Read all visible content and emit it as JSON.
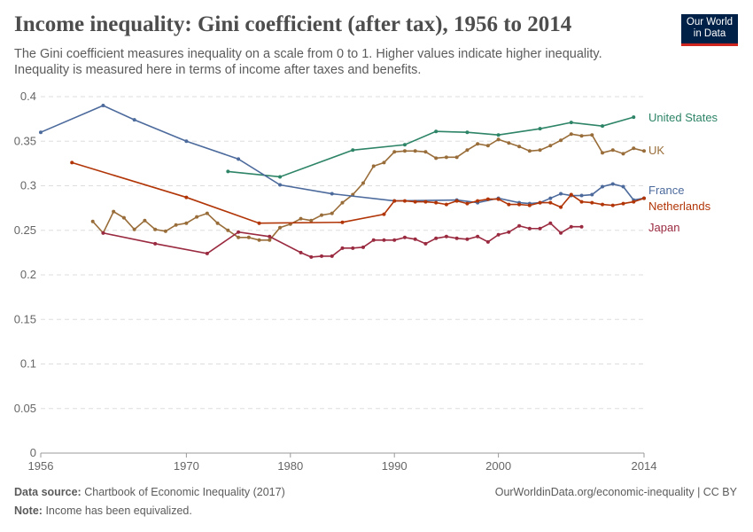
{
  "title": "Income inequality: Gini coefficient (after tax), 1956 to 2014",
  "subtitle": "The Gini coefficient measures inequality on a scale from 0 to 1. Higher values indicate higher inequality. Inequality is measured here in terms of income after taxes and benefits.",
  "logo": {
    "line1": "Our World",
    "line2": "in Data"
  },
  "footer": {
    "source_label": "Data source:",
    "source": "Chartbook of Economic Inequality (2017)",
    "url": "OurWorldinData.org/economic-inequality | CC BY",
    "note_label": "Note:",
    "note": "Income has been equivalized."
  },
  "chart_data": {
    "type": "line",
    "title": "Income inequality: Gini coefficient (after tax), 1956 to 2014",
    "xlim": [
      1956,
      2014
    ],
    "ylim": [
      0,
      0.4
    ],
    "xticks": [
      "1956",
      "1970",
      "1980",
      "1990",
      "2000",
      "2014"
    ],
    "yticks": [
      "0",
      "0.05",
      "0.1",
      "0.15",
      "0.2",
      "0.25",
      "0.3",
      "0.35",
      "0.4"
    ],
    "grid": "horizontal dashed",
    "legend": "right end labels",
    "series": [
      {
        "name": "United States",
        "color": "#2d8466",
        "x": [
          1974,
          1979,
          1986,
          1991,
          1994,
          1997,
          2000,
          2004,
          2007,
          2010,
          2013
        ],
        "y": [
          0.316,
          0.31,
          0.34,
          0.346,
          0.361,
          0.36,
          0.357,
          0.364,
          0.371,
          0.367,
          0.377
        ]
      },
      {
        "name": "UK",
        "color": "#996d39",
        "x": [
          1961,
          1962,
          1963,
          1964,
          1965,
          1966,
          1967,
          1968,
          1969,
          1970,
          1971,
          1972,
          1973,
          1974,
          1975,
          1976,
          1977,
          1978,
          1979,
          1980,
          1981,
          1982,
          1983,
          1984,
          1985,
          1986,
          1987,
          1988,
          1989,
          1990,
          1991,
          1992,
          1993,
          1994,
          1995,
          1996,
          1997,
          1998,
          1999,
          2000,
          2001,
          2002,
          2003,
          2004,
          2005,
          2006,
          2007,
          2008,
          2009,
          2010,
          2011,
          2012,
          2013,
          2014
        ],
        "y": [
          0.26,
          0.247,
          0.271,
          0.264,
          0.251,
          0.261,
          0.251,
          0.249,
          0.256,
          0.258,
          0.265,
          0.269,
          0.258,
          0.25,
          0.242,
          0.242,
          0.239,
          0.239,
          0.253,
          0.257,
          0.263,
          0.261,
          0.267,
          0.269,
          0.281,
          0.29,
          0.303,
          0.322,
          0.326,
          0.338,
          0.339,
          0.339,
          0.338,
          0.331,
          0.332,
          0.332,
          0.34,
          0.347,
          0.345,
          0.352,
          0.348,
          0.344,
          0.339,
          0.34,
          0.345,
          0.351,
          0.358,
          0.356,
          0.357,
          0.337,
          0.34,
          0.336,
          0.342,
          0.339
        ]
      },
      {
        "name": "France",
        "color": "#4c6a9c",
        "x": [
          1956,
          1962,
          1965,
          1970,
          1975,
          1979,
          1984,
          1990,
          1996,
          1998,
          2000,
          2002,
          2003,
          2004,
          2005,
          2006,
          2007,
          2008,
          2009,
          2010,
          2011,
          2012,
          2013,
          2014
        ],
        "y": [
          0.36,
          0.39,
          0.374,
          0.35,
          0.33,
          0.301,
          0.291,
          0.283,
          0.284,
          0.281,
          0.286,
          0.281,
          0.28,
          0.281,
          0.286,
          0.291,
          0.289,
          0.289,
          0.29,
          0.299,
          0.302,
          0.299,
          0.284,
          0.286
        ]
      },
      {
        "name": "Netherlands",
        "color": "#b13507",
        "x": [
          1959,
          1970,
          1977,
          1985,
          1989,
          1990,
          1991,
          1992,
          1993,
          1994,
          1995,
          1996,
          1997,
          1998,
          1999,
          2000,
          2001,
          2002,
          2003,
          2004,
          2005,
          2006,
          2007,
          2008,
          2009,
          2010,
          2011,
          2012,
          2013,
          2014
        ],
        "y": [
          0.326,
          0.287,
          0.258,
          0.259,
          0.268,
          0.283,
          0.283,
          0.282,
          0.282,
          0.281,
          0.279,
          0.283,
          0.28,
          0.283,
          0.285,
          0.285,
          0.279,
          0.279,
          0.278,
          0.281,
          0.281,
          0.276,
          0.29,
          0.282,
          0.281,
          0.279,
          0.278,
          0.28,
          0.282,
          0.286
        ]
      },
      {
        "name": "Japan",
        "color": "#9a2a40",
        "x": [
          1962,
          1967,
          1972,
          1975,
          1978,
          1981,
          1982,
          1983,
          1984,
          1985,
          1986,
          1987,
          1988,
          1989,
          1990,
          1991,
          1992,
          1993,
          1994,
          1995,
          1996,
          1997,
          1998,
          1999,
          2000,
          2001,
          2002,
          2003,
          2004,
          2005,
          2006,
          2007,
          2008
        ],
        "y": [
          0.247,
          0.235,
          0.224,
          0.248,
          0.243,
          0.225,
          0.22,
          0.221,
          0.221,
          0.23,
          0.23,
          0.231,
          0.239,
          0.239,
          0.239,
          0.242,
          0.24,
          0.235,
          0.241,
          0.243,
          0.241,
          0.24,
          0.243,
          0.237,
          0.245,
          0.248,
          0.255,
          0.252,
          0.252,
          0.258,
          0.247,
          0.254,
          0.254
        ]
      }
    ]
  }
}
